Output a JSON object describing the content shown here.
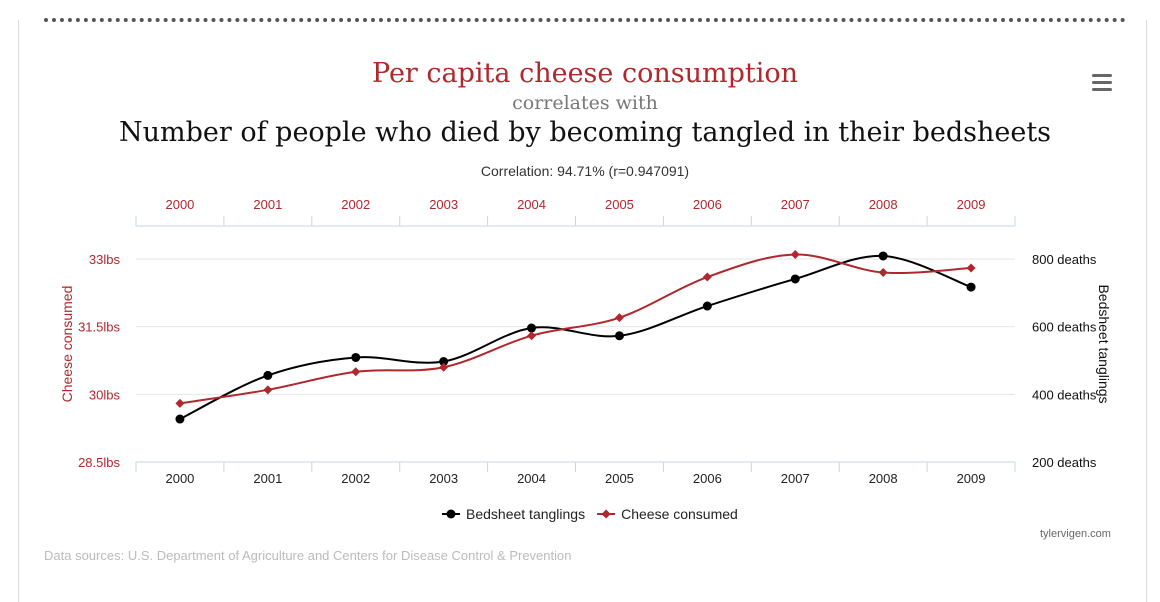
{
  "page": {
    "title": "Per capita cheese consumption",
    "connector": "correlates with",
    "subtitle": "Number of people who died by becoming tangled in their bedsheets",
    "correlation": "Correlation: 94.71% (r=0.947091)",
    "credit": "tylervigen.com",
    "sources": "Data sources: U.S. Department of Agriculture and Centers for Disease Control & Prevention",
    "menu_icon": "hamburger-menu-icon"
  },
  "chart_data": {
    "type": "line",
    "categories": [
      "2000",
      "2001",
      "2002",
      "2003",
      "2004",
      "2005",
      "2006",
      "2007",
      "2008",
      "2009"
    ],
    "series": [
      {
        "name": "Bedsheet tanglings",
        "axis": "right",
        "color": "#000000",
        "marker": "circle",
        "values": [
          327,
          456,
          509,
          497,
          596,
          573,
          661,
          741,
          809,
          717
        ]
      },
      {
        "name": "Cheese consumed",
        "axis": "left",
        "color": "#b0282e",
        "marker": "diamond",
        "values": [
          29.8,
          30.1,
          30.5,
          30.6,
          31.3,
          31.7,
          32.6,
          33.1,
          32.7,
          32.8
        ]
      }
    ],
    "left_axis": {
      "label": "Cheese consumed",
      "range": [
        28.5,
        33
      ],
      "ticks": [
        28.5,
        30,
        31.5,
        33
      ],
      "tick_labels": [
        "28.5lbs",
        "30lbs",
        "31.5lbs",
        "33lbs"
      ],
      "color": "#b0282e"
    },
    "right_axis": {
      "label": "Bedsheet tanglings",
      "range": [
        200,
        800
      ],
      "ticks": [
        200,
        400,
        600,
        800
      ],
      "tick_labels": [
        "200 deaths",
        "400 deaths",
        "600 deaths",
        "800 deaths"
      ],
      "color": "#111111"
    },
    "top_axis_color": "#b0282e",
    "grid": true,
    "legend_position": "bottom-center"
  }
}
